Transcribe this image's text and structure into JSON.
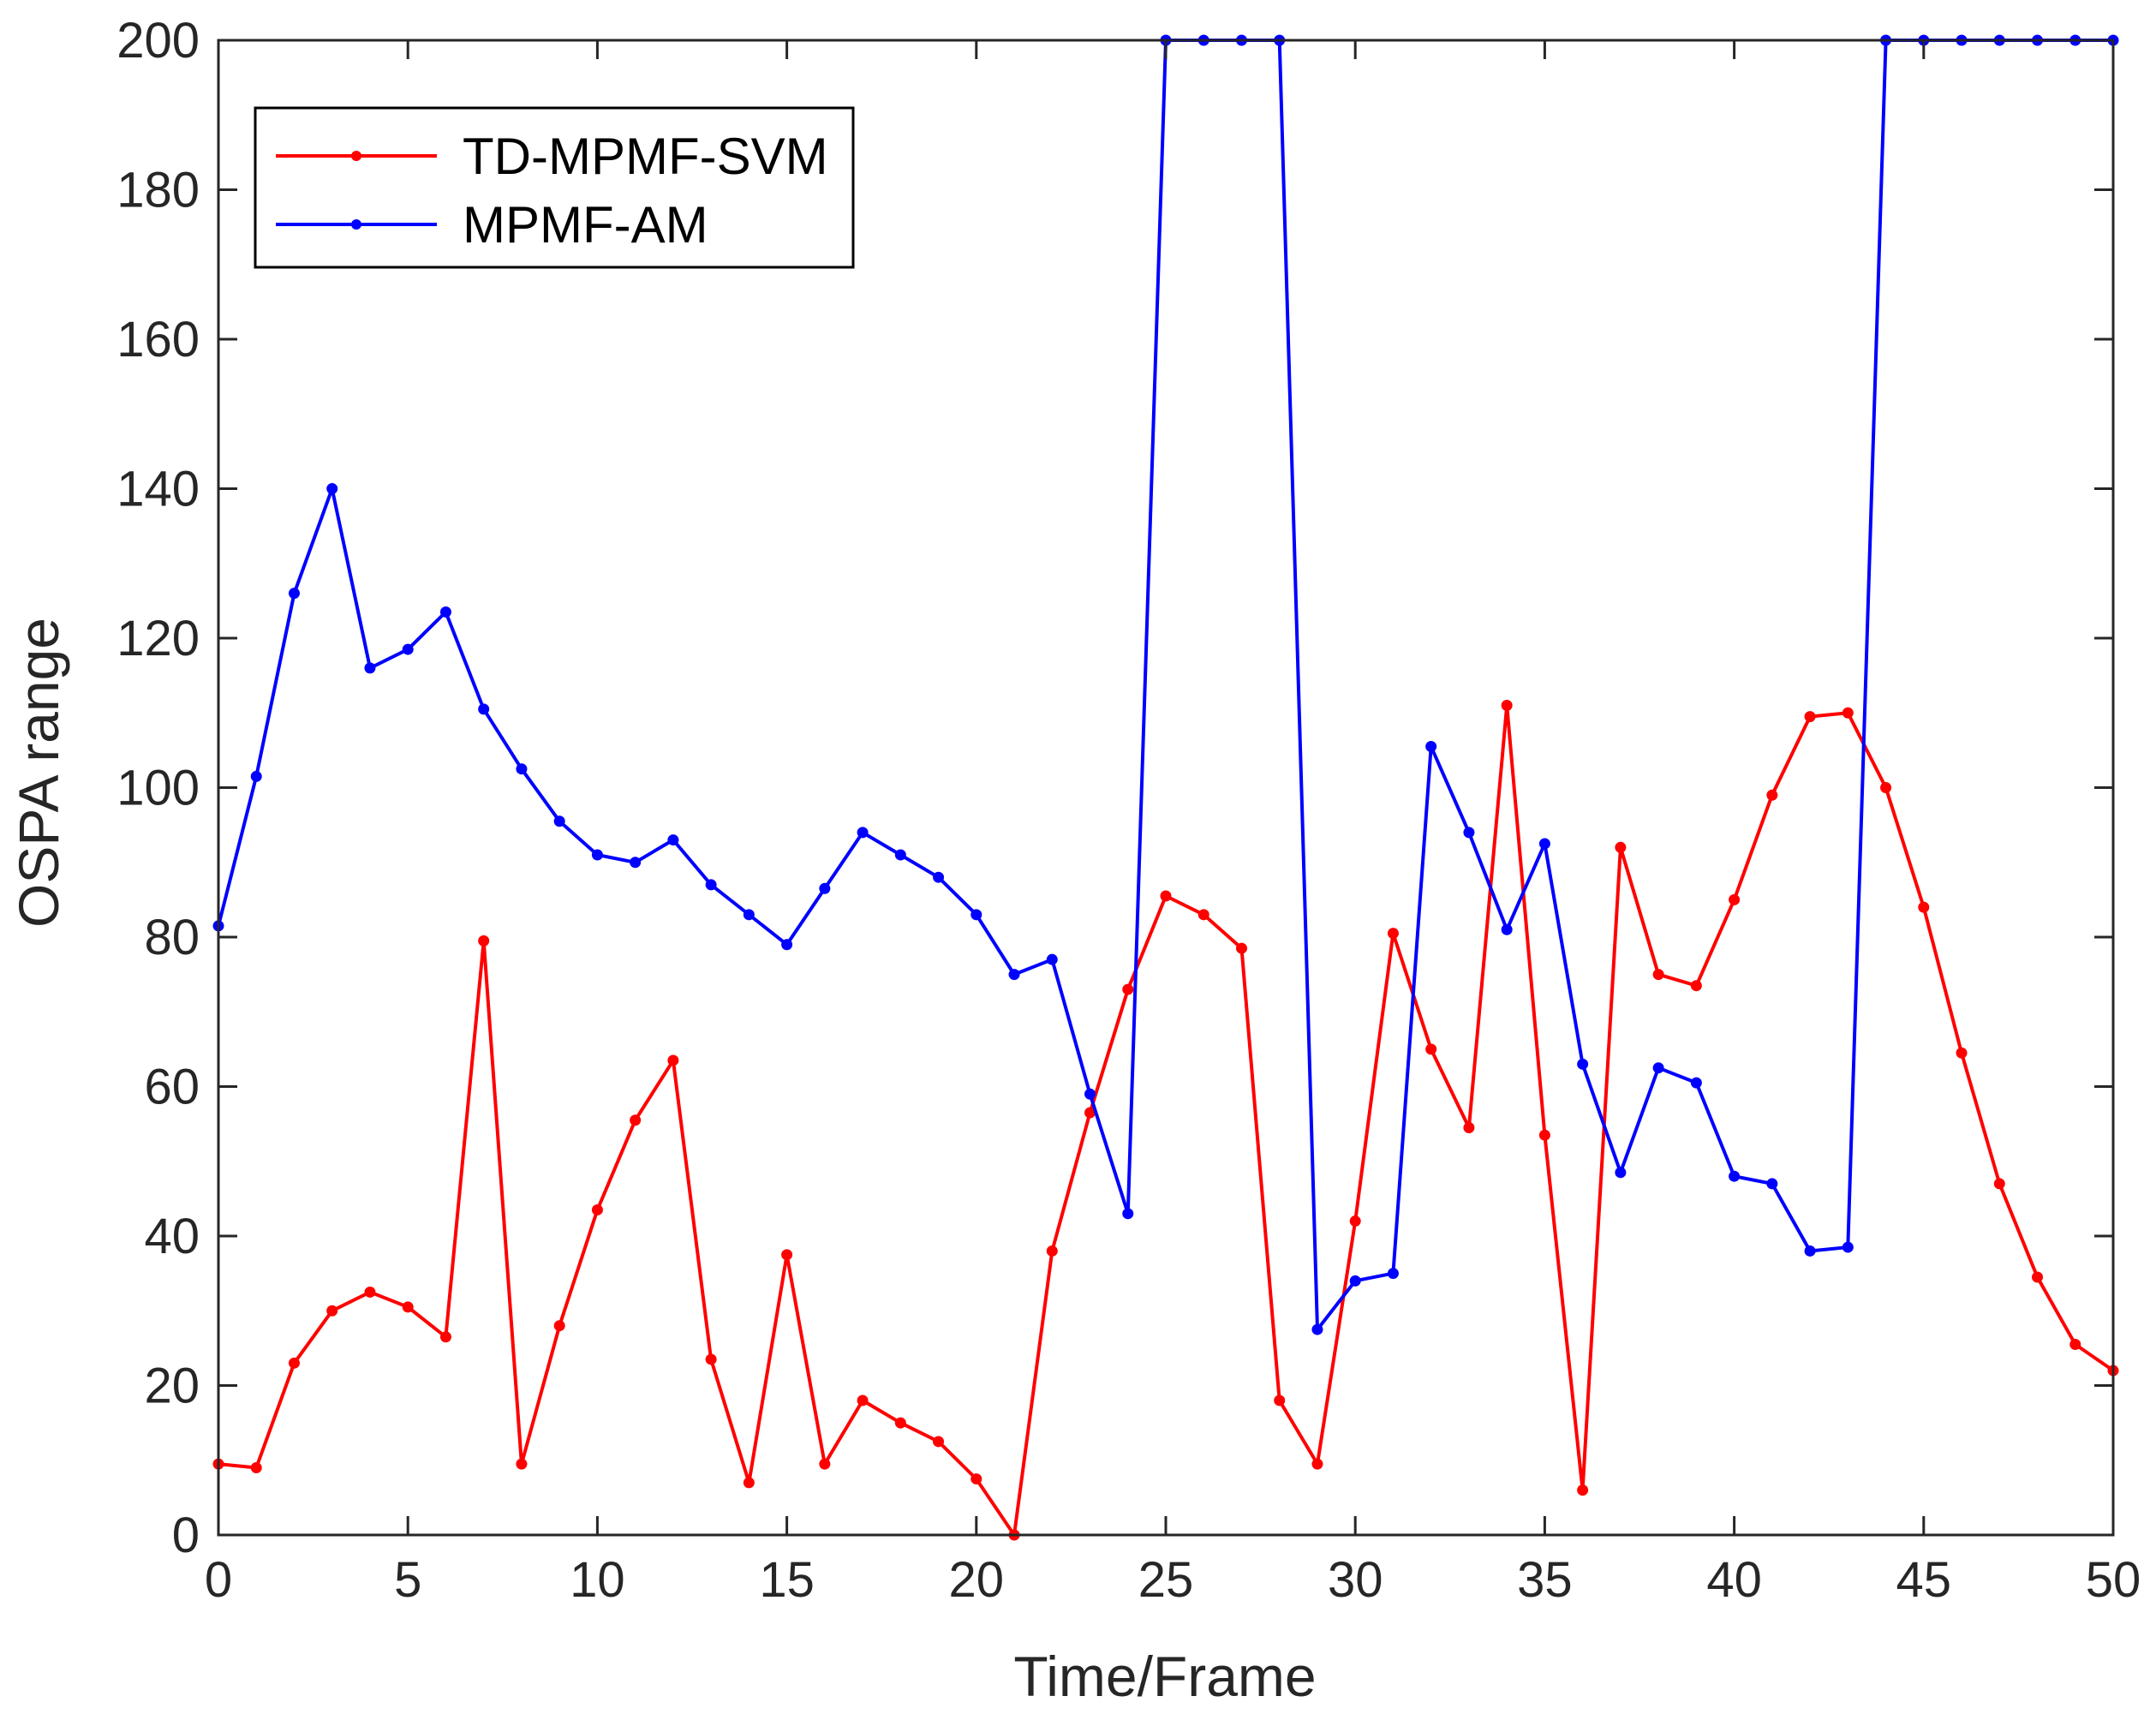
{
  "chart_data": {
    "type": "line",
    "xlabel": "Time/Frame",
    "ylabel": "OSPA range",
    "xlim": [
      0,
      50
    ],
    "ylim": [
      0,
      200
    ],
    "xticks": [
      0,
      5,
      10,
      15,
      20,
      25,
      30,
      35,
      40,
      45,
      50
    ],
    "yticks": [
      0,
      20,
      40,
      60,
      80,
      100,
      120,
      140,
      160,
      180,
      200
    ],
    "legend_position": "top-left",
    "x": [
      0,
      1,
      2,
      3,
      4,
      5,
      6,
      7,
      8,
      9,
      10,
      11,
      12,
      13,
      14,
      15,
      16,
      17,
      18,
      19,
      20,
      21,
      22,
      23,
      24,
      25,
      26,
      27,
      28,
      29,
      30,
      31,
      32,
      33,
      34,
      35,
      36,
      37,
      38,
      39,
      40,
      41,
      42,
      43,
      44,
      45,
      46,
      47,
      48,
      49,
      50
    ],
    "series": [
      {
        "name": "TD-MPMF-SVM",
        "color": "#ff0000",
        "values": [
          9.5,
          9,
          23,
          30,
          32.5,
          30.5,
          26.5,
          79.5,
          9.5,
          28,
          43.5,
          55.5,
          63.5,
          23.5,
          7,
          37.5,
          9.5,
          18,
          15,
          12.5,
          7.5,
          0,
          38,
          56.5,
          73,
          85.5,
          83,
          78.5,
          18,
          9.5,
          42,
          80.5,
          65,
          54.5,
          111,
          53.5,
          6,
          92,
          75,
          73.5,
          85,
          99,
          109.5,
          110,
          100,
          84,
          64.5,
          47,
          34.5,
          25.5,
          22
        ]
      },
      {
        "name": "MPMF-AM",
        "color": "#0000ff",
        "values": [
          81.5,
          101.5,
          126,
          140,
          116,
          118.5,
          123.5,
          110.5,
          102.5,
          95.5,
          91,
          90,
          93,
          87,
          83,
          79,
          86.5,
          94,
          91,
          88,
          83,
          75,
          77,
          59,
          43,
          200,
          200,
          200,
          200,
          27.5,
          34,
          35,
          105.5,
          94,
          81,
          92.5,
          63,
          48.5,
          62.5,
          60.5,
          48,
          47,
          38,
          38.5,
          200,
          200,
          200,
          200,
          200,
          200,
          200
        ]
      }
    ]
  }
}
